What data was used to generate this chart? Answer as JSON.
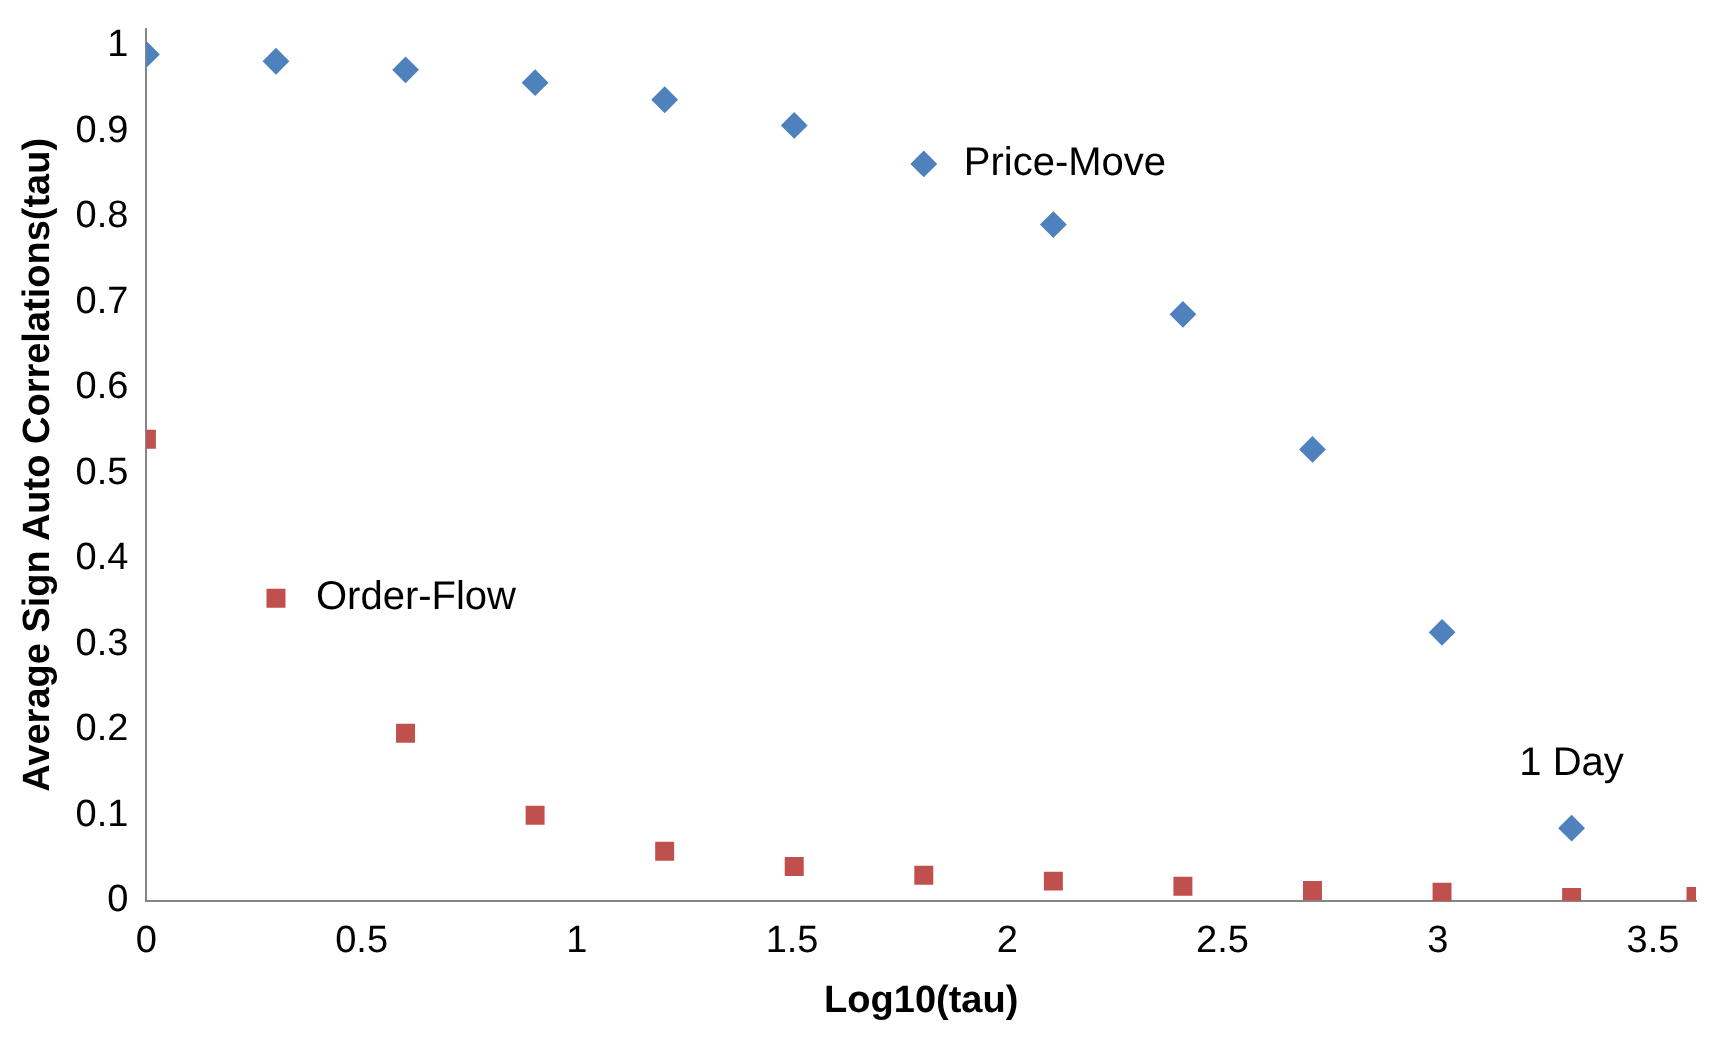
{
  "chart_data": {
    "type": "scatter",
    "xlabel": "Log10(tau)",
    "ylabel": "Average Sign Auto Correlations(tau)",
    "xlim": [
      0,
      3.6
    ],
    "xticks": [
      0,
      0.5,
      1,
      1.5,
      2,
      2.5,
      3,
      3.5
    ],
    "ylim": [
      0,
      1.02
    ],
    "yticks": [
      0,
      0.1,
      0.2,
      0.3,
      0.4,
      0.5,
      0.6,
      0.7,
      0.8,
      0.9,
      1
    ],
    "grid": false,
    "legend": false,
    "series": [
      {
        "color": "#4f81bd",
        "marker": "diamond",
        "x": [
          0,
          0.301,
          0.602,
          0.903,
          1.204,
          1.505,
          1.806,
          2.107,
          2.408,
          2.709,
          3.01,
          3.311
        ],
        "values": [
          0.99,
          0.982,
          0.972,
          0.957,
          0.937,
          0.907,
          0.862,
          0.791,
          0.686,
          0.528,
          0.314,
          0.085
        ]
      },
      {
        "color": "#c0504d",
        "marker": "square",
        "x": [
          0,
          0.301,
          0.602,
          0.903,
          1.204,
          1.505,
          1.806,
          2.107,
          2.408,
          2.709,
          3.01,
          3.311,
          3.6
        ],
        "values": [
          0.54,
          0.354,
          0.196,
          0.1,
          0.058,
          0.04,
          0.03,
          0.023,
          0.017,
          0.012,
          0.01,
          0.004,
          0.005
        ]
      }
    ],
    "annotations": [
      {
        "text": "Price-Move",
        "x": 1.806,
        "y": 0.862
      },
      {
        "text": "Order-Flow",
        "x": 0.301,
        "y": 0.354
      },
      {
        "text": "1 Day",
        "x": 3.311,
        "y": 0.085
      }
    ]
  }
}
